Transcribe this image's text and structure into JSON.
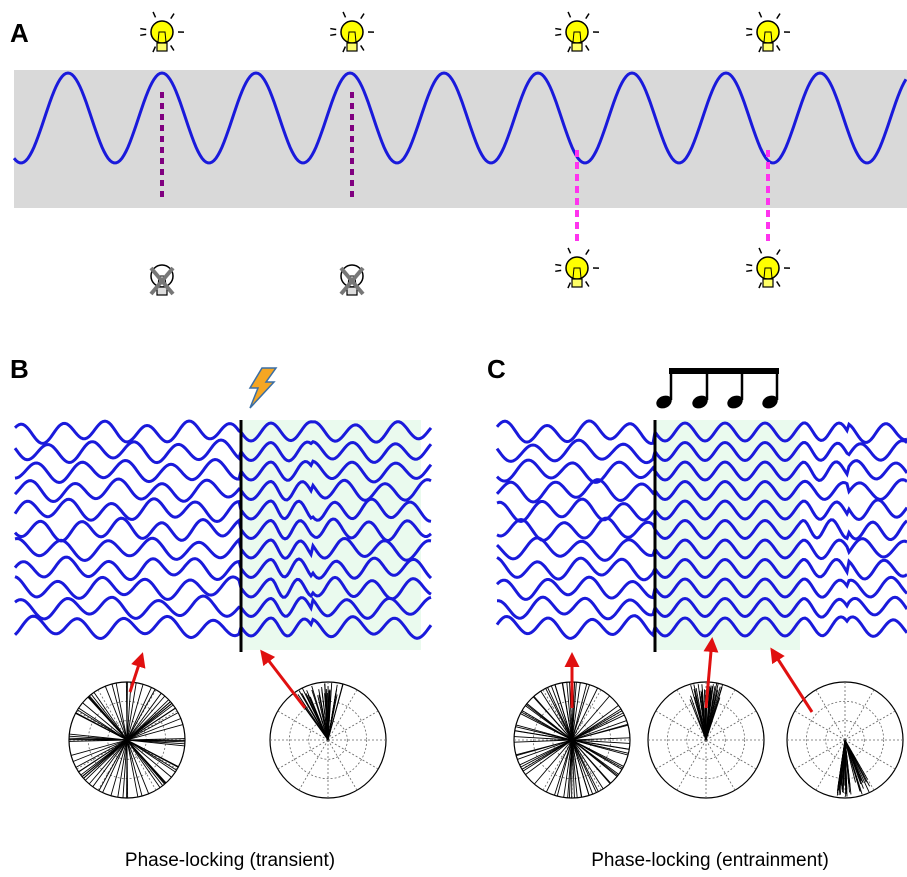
{
  "panels": [
    {
      "label": "A"
    },
    {
      "label": "B",
      "caption": "Phase-locking (transient)"
    },
    {
      "label": "C",
      "caption": "Phase-locking (entrainment)"
    }
  ]
}
